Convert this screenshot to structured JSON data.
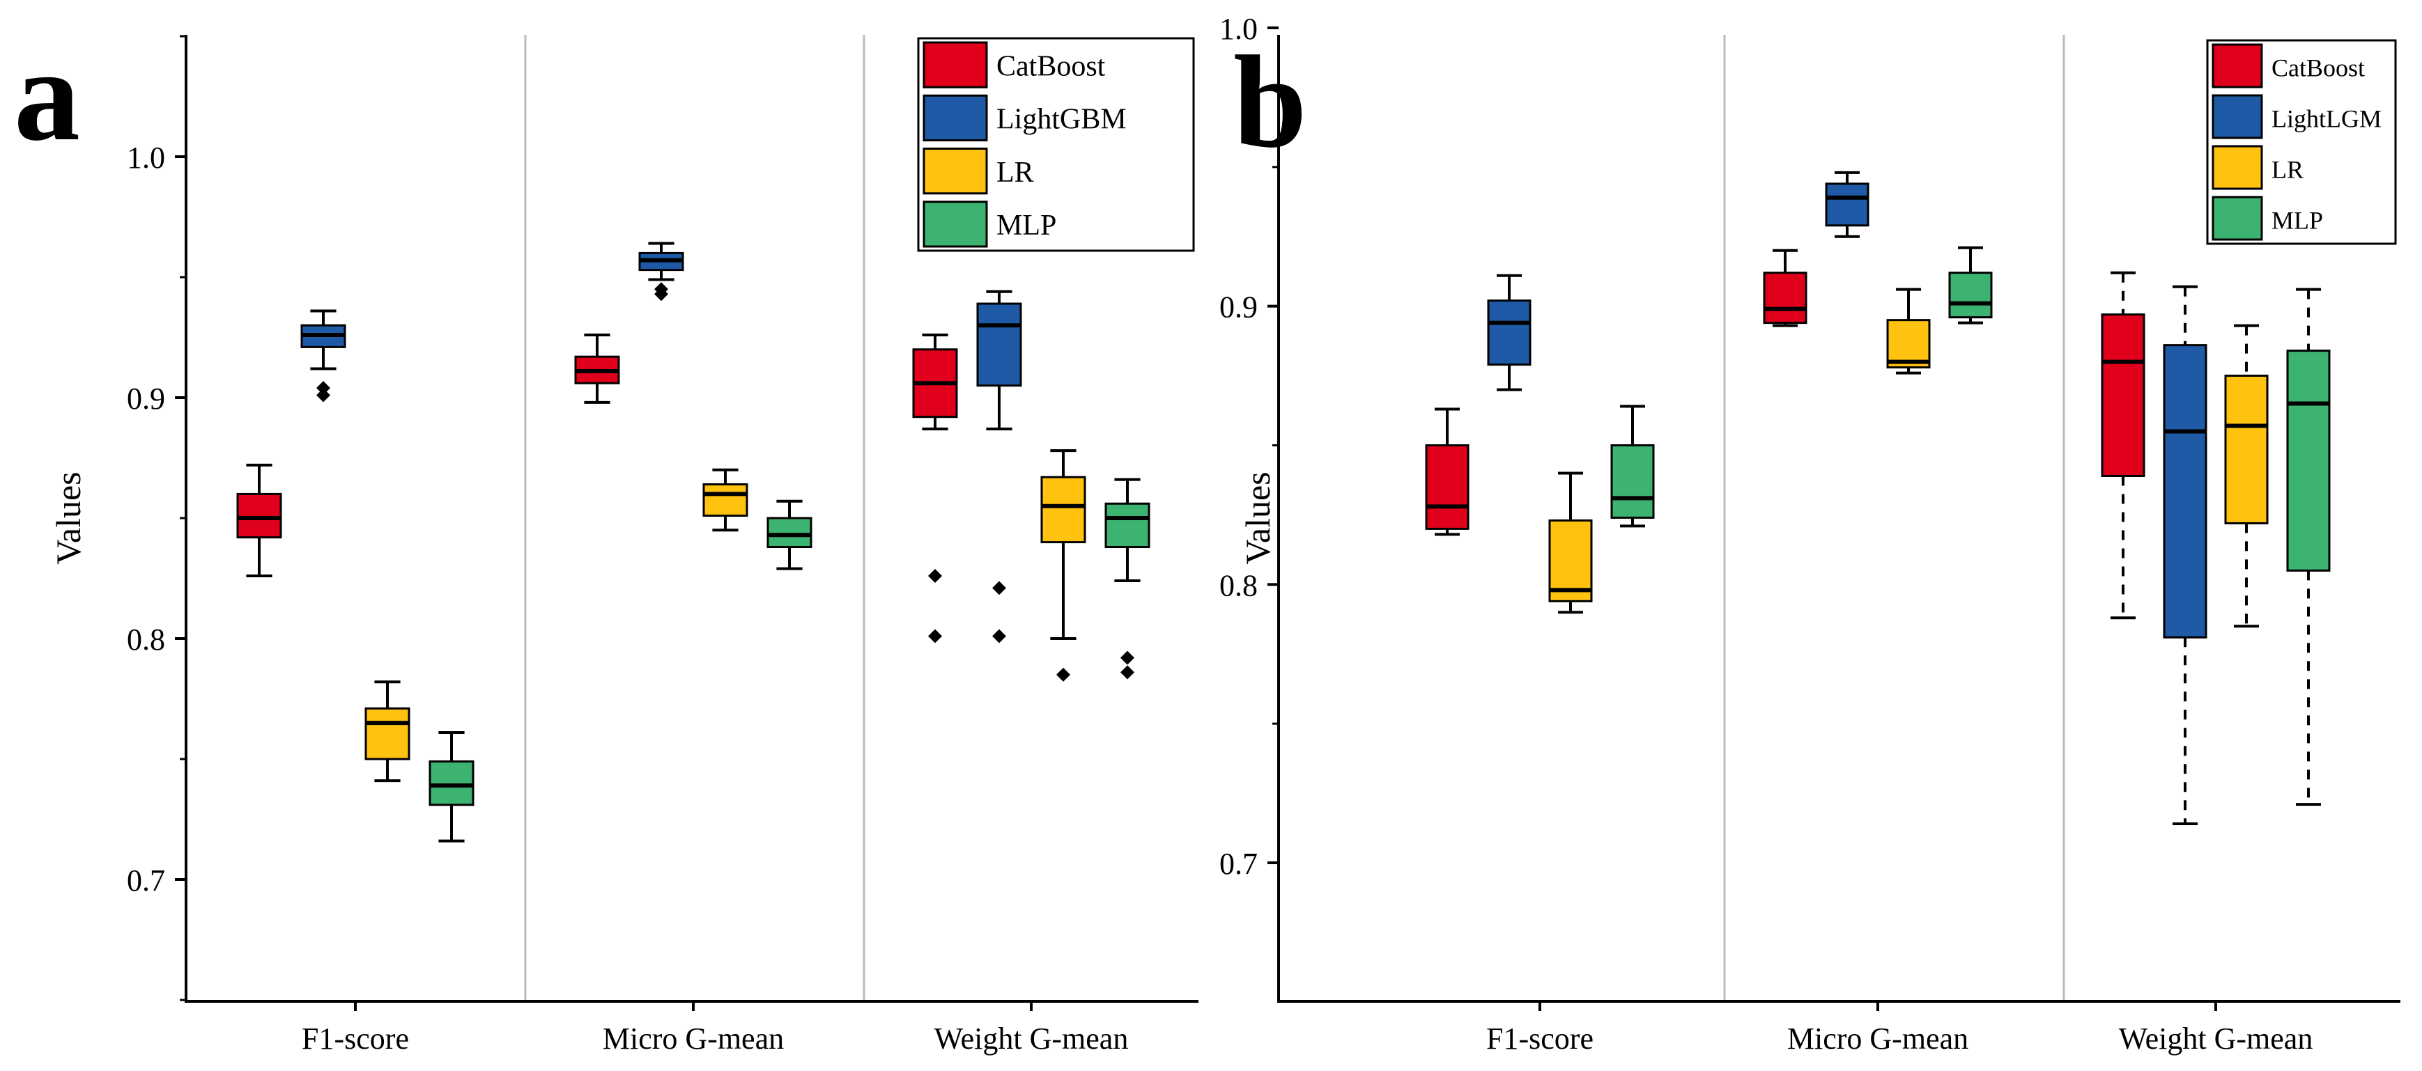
{
  "chart_data": [
    {
      "type": "box",
      "panel_label": "a",
      "ylabel": "Values",
      "ylim": [
        0.65,
        1.05
      ],
      "yticks": [
        0.7,
        0.8,
        0.9,
        1.0
      ],
      "ytick_labels": [
        "0.7",
        "0.8",
        "0.9",
        "1.0"
      ],
      "groups": [
        "F1-score",
        "Micro G-mean",
        "Weight G-mean"
      ],
      "series_names": [
        "CatBoost",
        "LightGBM",
        "LR",
        "MLP"
      ],
      "legend_position": "top-right",
      "boxes": [
        {
          "group": "F1-score",
          "series": "CatBoost",
          "whisker_low": 0.826,
          "q1": 0.842,
          "median": 0.85,
          "q3": 0.86,
          "whisker_high": 0.872,
          "outliers": []
        },
        {
          "group": "F1-score",
          "series": "LightGBM",
          "whisker_low": 0.912,
          "q1": 0.921,
          "median": 0.926,
          "q3": 0.93,
          "whisker_high": 0.936,
          "outliers": [
            0.901,
            0.904
          ]
        },
        {
          "group": "F1-score",
          "series": "LR",
          "whisker_low": 0.741,
          "q1": 0.75,
          "median": 0.765,
          "q3": 0.771,
          "whisker_high": 0.782,
          "outliers": []
        },
        {
          "group": "F1-score",
          "series": "MLP",
          "whisker_low": 0.716,
          "q1": 0.731,
          "median": 0.739,
          "q3": 0.749,
          "whisker_high": 0.761,
          "outliers": []
        },
        {
          "group": "Micro G-mean",
          "series": "CatBoost",
          "whisker_low": 0.898,
          "q1": 0.906,
          "median": 0.911,
          "q3": 0.917,
          "whisker_high": 0.926,
          "outliers": []
        },
        {
          "group": "Micro G-mean",
          "series": "LightGBM",
          "whisker_low": 0.949,
          "q1": 0.953,
          "median": 0.957,
          "q3": 0.96,
          "whisker_high": 0.964,
          "outliers": [
            0.943,
            0.945
          ]
        },
        {
          "group": "Micro G-mean",
          "series": "LR",
          "whisker_low": 0.845,
          "q1": 0.851,
          "median": 0.86,
          "q3": 0.864,
          "whisker_high": 0.87,
          "outliers": []
        },
        {
          "group": "Micro G-mean",
          "series": "MLP",
          "whisker_low": 0.829,
          "q1": 0.838,
          "median": 0.843,
          "q3": 0.85,
          "whisker_high": 0.857,
          "outliers": []
        },
        {
          "group": "Weight G-mean",
          "series": "CatBoost",
          "whisker_low": 0.887,
          "q1": 0.892,
          "median": 0.906,
          "q3": 0.92,
          "whisker_high": 0.926,
          "outliers": [
            0.826,
            0.801
          ]
        },
        {
          "group": "Weight G-mean",
          "series": "LightGBM",
          "whisker_low": 0.887,
          "q1": 0.905,
          "median": 0.93,
          "q3": 0.939,
          "whisker_high": 0.944,
          "outliers": [
            0.821,
            0.801
          ]
        },
        {
          "group": "Weight G-mean",
          "series": "LR",
          "whisker_low": 0.8,
          "q1": 0.84,
          "median": 0.855,
          "q3": 0.867,
          "whisker_high": 0.878,
          "outliers": [
            0.785
          ]
        },
        {
          "group": "Weight G-mean",
          "series": "MLP",
          "whisker_low": 0.824,
          "q1": 0.838,
          "median": 0.85,
          "q3": 0.856,
          "whisker_high": 0.866,
          "outliers": [
            0.792,
            0.786
          ]
        }
      ]
    },
    {
      "type": "box",
      "panel_label": "b",
      "ylabel": "Values",
      "ylim": [
        0.65,
        1.0
      ],
      "yticks": [
        0.7,
        0.8,
        0.9,
        1.0
      ],
      "ytick_labels": [
        "0.7",
        "0.8",
        "0.9",
        "1.0"
      ],
      "groups": [
        "F1-score",
        "Micro G-mean",
        "Weight G-mean"
      ],
      "series_names": [
        "CatBoost",
        "LightLGM",
        "LR",
        "MLP"
      ],
      "legend_position": "top-right",
      "boxes": [
        {
          "group": "F1-score",
          "series": "CatBoost",
          "whisker_low": 0.818,
          "q1": 0.82,
          "median": 0.828,
          "q3": 0.85,
          "whisker_high": 0.863,
          "outliers": []
        },
        {
          "group": "F1-score",
          "series": "LightLGM",
          "whisker_low": 0.87,
          "q1": 0.879,
          "median": 0.894,
          "q3": 0.902,
          "whisker_high": 0.911,
          "outliers": []
        },
        {
          "group": "F1-score",
          "series": "LR",
          "whisker_low": 0.79,
          "q1": 0.794,
          "median": 0.798,
          "q3": 0.823,
          "whisker_high": 0.84,
          "outliers": []
        },
        {
          "group": "F1-score",
          "series": "MLP",
          "whisker_low": 0.821,
          "q1": 0.824,
          "median": 0.831,
          "q3": 0.85,
          "whisker_high": 0.864,
          "outliers": []
        },
        {
          "group": "Micro G-mean",
          "series": "CatBoost",
          "whisker_low": 0.893,
          "q1": 0.894,
          "median": 0.899,
          "q3": 0.912,
          "whisker_high": 0.92,
          "outliers": []
        },
        {
          "group": "Micro G-mean",
          "series": "LightLGM",
          "whisker_low": 0.925,
          "q1": 0.929,
          "median": 0.939,
          "q3": 0.944,
          "whisker_high": 0.948,
          "outliers": []
        },
        {
          "group": "Micro G-mean",
          "series": "LR",
          "whisker_low": 0.876,
          "q1": 0.878,
          "median": 0.88,
          "q3": 0.895,
          "whisker_high": 0.906,
          "outliers": []
        },
        {
          "group": "Micro G-mean",
          "series": "MLP",
          "whisker_low": 0.894,
          "q1": 0.896,
          "median": 0.901,
          "q3": 0.912,
          "whisker_high": 0.921,
          "outliers": []
        },
        {
          "group": "Weight G-mean",
          "series": "CatBoost",
          "whisker_low": 0.788,
          "q1": 0.839,
          "median": 0.88,
          "q3": 0.897,
          "whisker_high": 0.912,
          "outliers": []
        },
        {
          "group": "Weight G-mean",
          "series": "LightLGM",
          "whisker_low": 0.714,
          "q1": 0.781,
          "median": 0.855,
          "q3": 0.886,
          "whisker_high": 0.907,
          "outliers": []
        },
        {
          "group": "Weight G-mean",
          "series": "LR",
          "whisker_low": 0.785,
          "q1": 0.822,
          "median": 0.857,
          "q3": 0.875,
          "whisker_high": 0.893,
          "outliers": []
        },
        {
          "group": "Weight G-mean",
          "series": "MLP",
          "whisker_low": 0.721,
          "q1": 0.805,
          "median": 0.865,
          "q3": 0.884,
          "whisker_high": 0.906,
          "outliers": []
        }
      ]
    }
  ],
  "colors": {
    "series": [
      "#e0001b",
      "#1f5aa6",
      "#ffc20e",
      "#3cb371"
    ],
    "axis": "#000000",
    "separator": "#bbbbbb"
  }
}
